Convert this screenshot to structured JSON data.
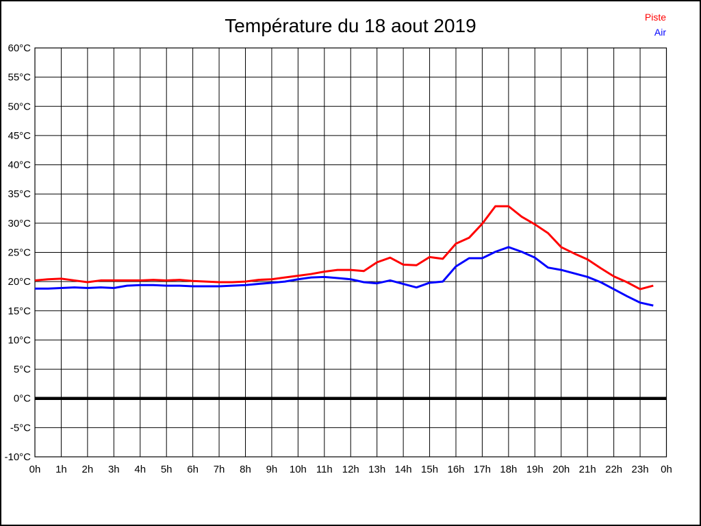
{
  "title": "Température du 18 aout 2019",
  "legend": [
    {
      "label": "Piste",
      "color": "#ff0000"
    },
    {
      "label": "Air",
      "color": "#0000ff"
    }
  ],
  "chart_data": {
    "type": "line",
    "title": "Température du 18 aout 2019",
    "xlabel": "",
    "ylabel": "",
    "xlim": [
      0,
      24
    ],
    "ylim": [
      -10,
      60
    ],
    "y_step": 5,
    "grid": true,
    "zero_line": true,
    "legend_position": "top-right",
    "x_tick_labels": [
      "0h",
      "1h",
      "2h",
      "3h",
      "4h",
      "5h",
      "6h",
      "7h",
      "8h",
      "9h",
      "10h",
      "11h",
      "12h",
      "13h",
      "14h",
      "15h",
      "16h",
      "17h",
      "18h",
      "19h",
      "20h",
      "21h",
      "22h",
      "23h",
      "0h"
    ],
    "y_tick_labels": [
      "60°C",
      "55°C",
      "50°C",
      "45°C",
      "40°C",
      "35°C",
      "30°C",
      "25°C",
      "20°C",
      "15°C",
      "10°C",
      "5°C",
      "0°C",
      "-5°C",
      "-10°C"
    ],
    "x": [
      0,
      0.5,
      1,
      1.5,
      2,
      2.5,
      3,
      3.5,
      4,
      4.5,
      5,
      5.5,
      6,
      6.5,
      7,
      7.5,
      8,
      8.5,
      9,
      9.5,
      10,
      10.5,
      11,
      11.5,
      12,
      12.5,
      13,
      13.5,
      14,
      14.5,
      15,
      15.5,
      16,
      16.5,
      17,
      17.5,
      18,
      18.5,
      19,
      19.5,
      20,
      20.5,
      21,
      21.5,
      22,
      22.5,
      23,
      23.5
    ],
    "series": [
      {
        "name": "Piste",
        "color": "#ff0000",
        "values": [
          20.2,
          20.4,
          20.5,
          20.2,
          19.9,
          20.2,
          20.2,
          20.2,
          20.2,
          20.3,
          20.2,
          20.3,
          20.1,
          20.0,
          19.9,
          19.9,
          20.0,
          20.3,
          20.4,
          20.7,
          21.0,
          21.3,
          21.7,
          22.0,
          22.0,
          21.8,
          23.3,
          24.1,
          22.9,
          22.8,
          24.2,
          23.9,
          26.5,
          27.5,
          29.9,
          32.9,
          32.9,
          31.1,
          29.8,
          28.3,
          25.9,
          24.8,
          23.8,
          22.3,
          20.9,
          19.9,
          18.7,
          19.3
        ]
      },
      {
        "name": "Air",
        "color": "#0000ff",
        "values": [
          18.8,
          18.8,
          18.9,
          19.0,
          18.9,
          19.0,
          18.9,
          19.3,
          19.4,
          19.4,
          19.3,
          19.3,
          19.2,
          19.2,
          19.2,
          19.3,
          19.4,
          19.6,
          19.8,
          20.0,
          20.4,
          20.7,
          20.8,
          20.6,
          20.4,
          19.9,
          19.7,
          20.2,
          19.6,
          19.0,
          19.8,
          20.0,
          22.6,
          24.0,
          24.0,
          25.1,
          25.9,
          25.1,
          24.1,
          22.4,
          22.0,
          21.4,
          20.8,
          19.9,
          18.7,
          17.5,
          16.4,
          15.9
        ]
      }
    ]
  }
}
